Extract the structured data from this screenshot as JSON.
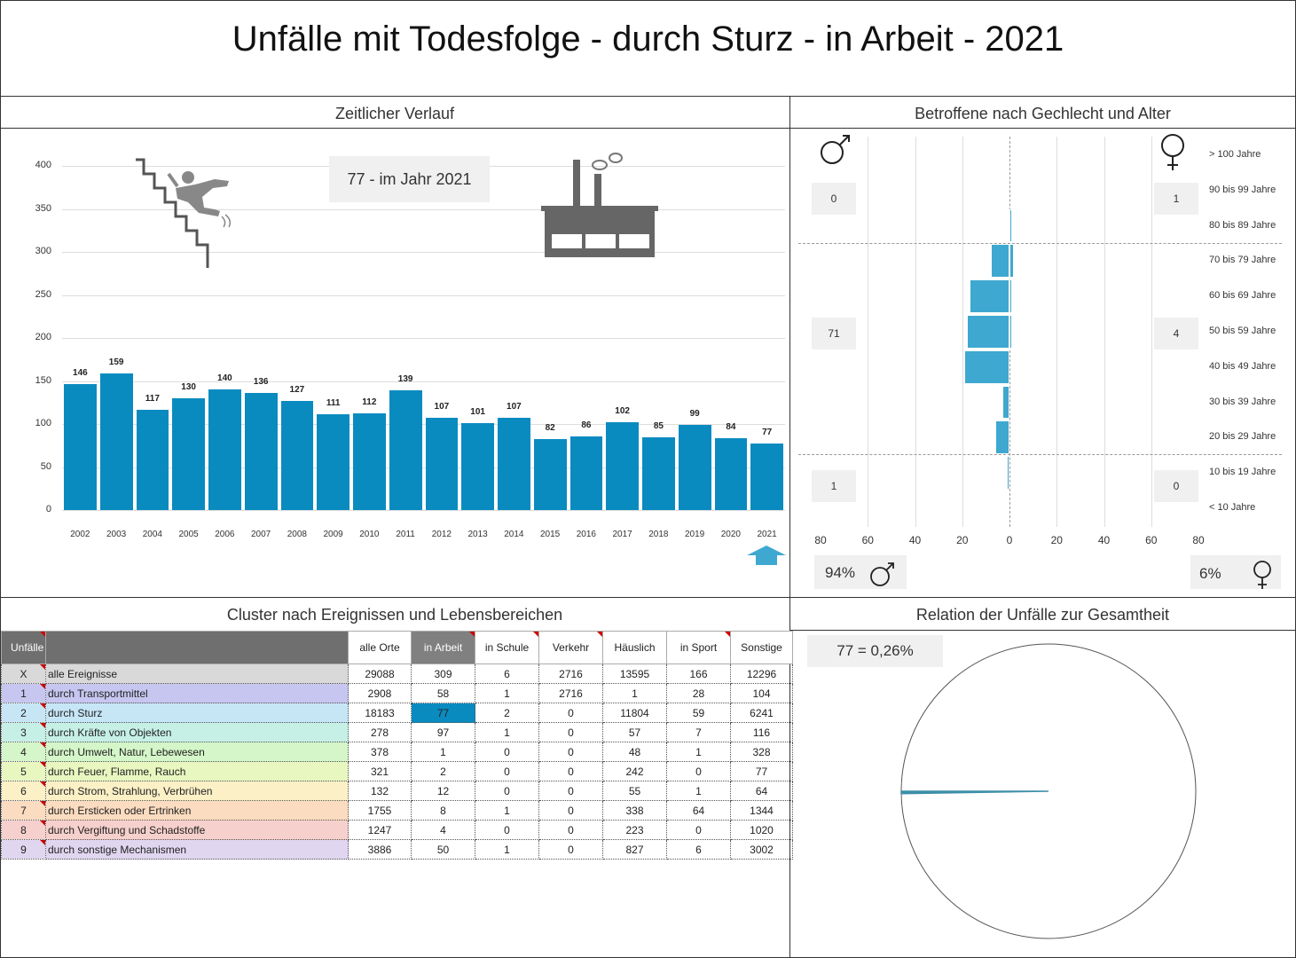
{
  "title": "Unfälle mit Todesfolge - durch Sturz - in Arbeit - 2021",
  "sections": {
    "timeline": "Zeitlicher Verlauf",
    "pyramid": "Betroffene nach Gechlecht und Alter",
    "cluster": "Cluster nach Ereignissen und Lebensbereichen",
    "relation": "Relation der Unfälle zur Gesamtheit"
  },
  "callouts": {
    "current_year": "77 - im Jahr 2021",
    "relation": "77 =  0,26%"
  },
  "colors": {
    "bar": "#0a8bc0",
    "pyramid_bar": "#3ea8d0",
    "pie_slice": "#3c8fa8",
    "selected_cell": "#0a8bc0"
  },
  "icons": [
    "falling-person-icon",
    "factory-icon",
    "arrow-up-icon",
    "male-icon",
    "female-icon"
  ],
  "chart_data": [
    {
      "type": "bar",
      "categories": [
        "2002",
        "2003",
        "2004",
        "2005",
        "2006",
        "2007",
        "2008",
        "2009",
        "2010",
        "2011",
        "2012",
        "2013",
        "2014",
        "2015",
        "2016",
        "2017",
        "2018",
        "2019",
        "2020",
        "2021"
      ],
      "values": [
        146,
        159,
        117,
        130,
        140,
        136,
        127,
        111,
        112,
        139,
        107,
        101,
        107,
        82,
        86,
        102,
        85,
        99,
        84,
        77
      ],
      "yticks": [
        "0",
        "50",
        "100",
        "150",
        "200",
        "250",
        "300",
        "350",
        "400"
      ],
      "ylim": [
        0,
        400
      ],
      "grid": true
    },
    {
      "type": "bar",
      "orientation": "horizontal-diverging",
      "categories": [
        "> 100 Jahre",
        "90 bis 99 Jahre",
        "80 bis 89 Jahre",
        "70 bis 79 Jahre",
        "60 bis 69 Jahre",
        "50 bis 59 Jahre",
        "40 bis 49 Jahre",
        "30 bis 39 Jahre",
        "20 bis 29 Jahre",
        "10 bis 19 Jahre",
        "< 10 Jahre"
      ],
      "series": [
        {
          "values": [
            0,
            0,
            0,
            8,
            17,
            18,
            19,
            3,
            6,
            1,
            0
          ]
        },
        {
          "values": [
            0,
            0,
            1,
            2,
            1,
            1,
            0,
            0,
            0,
            0,
            0
          ]
        }
      ],
      "xticks": [
        "80",
        "60",
        "40",
        "20",
        "0",
        "20",
        "40",
        "60",
        "80"
      ],
      "xlim": [
        -80,
        80
      ],
      "group_totals": {
        "male": [
          "0",
          "71",
          "1"
        ],
        "female": [
          "1",
          "4",
          "0"
        ]
      },
      "shares": {
        "male": "94%",
        "female": "6%"
      }
    },
    {
      "type": "table",
      "columns": [
        "Unfälle",
        "alle Orte",
        "in Arbeit",
        "in Schule",
        "Verkehr",
        "Häuslich",
        "in Sport",
        "Sonstige"
      ],
      "rows": [
        {
          "id": "X",
          "name": "alle Ereignisse",
          "color": "#d9d9d9",
          "values": [
            "29088",
            "309",
            "6",
            "2716",
            "13595",
            "166",
            "12296"
          ]
        },
        {
          "id": "1",
          "name": "durch Transportmittel",
          "color": "#c6c6f0",
          "values": [
            "2908",
            "58",
            "1",
            "2716",
            "1",
            "28",
            "104"
          ]
        },
        {
          "id": "2",
          "name": "durch Sturz",
          "color": "#c6e6f6",
          "values": [
            "18183",
            "77",
            "2",
            "0",
            "11804",
            "59",
            "6241"
          ]
        },
        {
          "id": "3",
          "name": "durch Kräfte von Objekten",
          "color": "#c6f0e6",
          "values": [
            "278",
            "97",
            "1",
            "0",
            "57",
            "7",
            "116"
          ]
        },
        {
          "id": "4",
          "name": "durch Umwelt, Natur, Lebewesen",
          "color": "#d4f6c8",
          "values": [
            "378",
            "1",
            "0",
            "0",
            "48",
            "1",
            "328"
          ]
        },
        {
          "id": "5",
          "name": "durch Feuer, Flamme, Rauch",
          "color": "#e8f6c0",
          "values": [
            "321",
            "2",
            "0",
            "0",
            "242",
            "0",
            "77"
          ]
        },
        {
          "id": "6",
          "name": "durch Strom, Strahlung, Verbrühen",
          "color": "#fbf0c6",
          "values": [
            "132",
            "12",
            "0",
            "0",
            "55",
            "1",
            "64"
          ]
        },
        {
          "id": "7",
          "name": "durch Ersticken oder Ertrinken",
          "color": "#fbdcc0",
          "values": [
            "1755",
            "8",
            "1",
            "0",
            "338",
            "64",
            "1344"
          ]
        },
        {
          "id": "8",
          "name": "durch Vergiftung und Schadstoffe",
          "color": "#f6d0cc",
          "values": [
            "1247",
            "4",
            "0",
            "0",
            "223",
            "0",
            "1020"
          ]
        },
        {
          "id": "9",
          "name": "durch sonstige Mechanismen",
          "color": "#e0d6f0",
          "values": [
            "3886",
            "50",
            "1",
            "0",
            "827",
            "6",
            "3002"
          ]
        }
      ],
      "selected": {
        "row": "2",
        "column": "in Arbeit"
      }
    },
    {
      "type": "pie",
      "values": [
        0.26,
        99.74
      ]
    }
  ]
}
